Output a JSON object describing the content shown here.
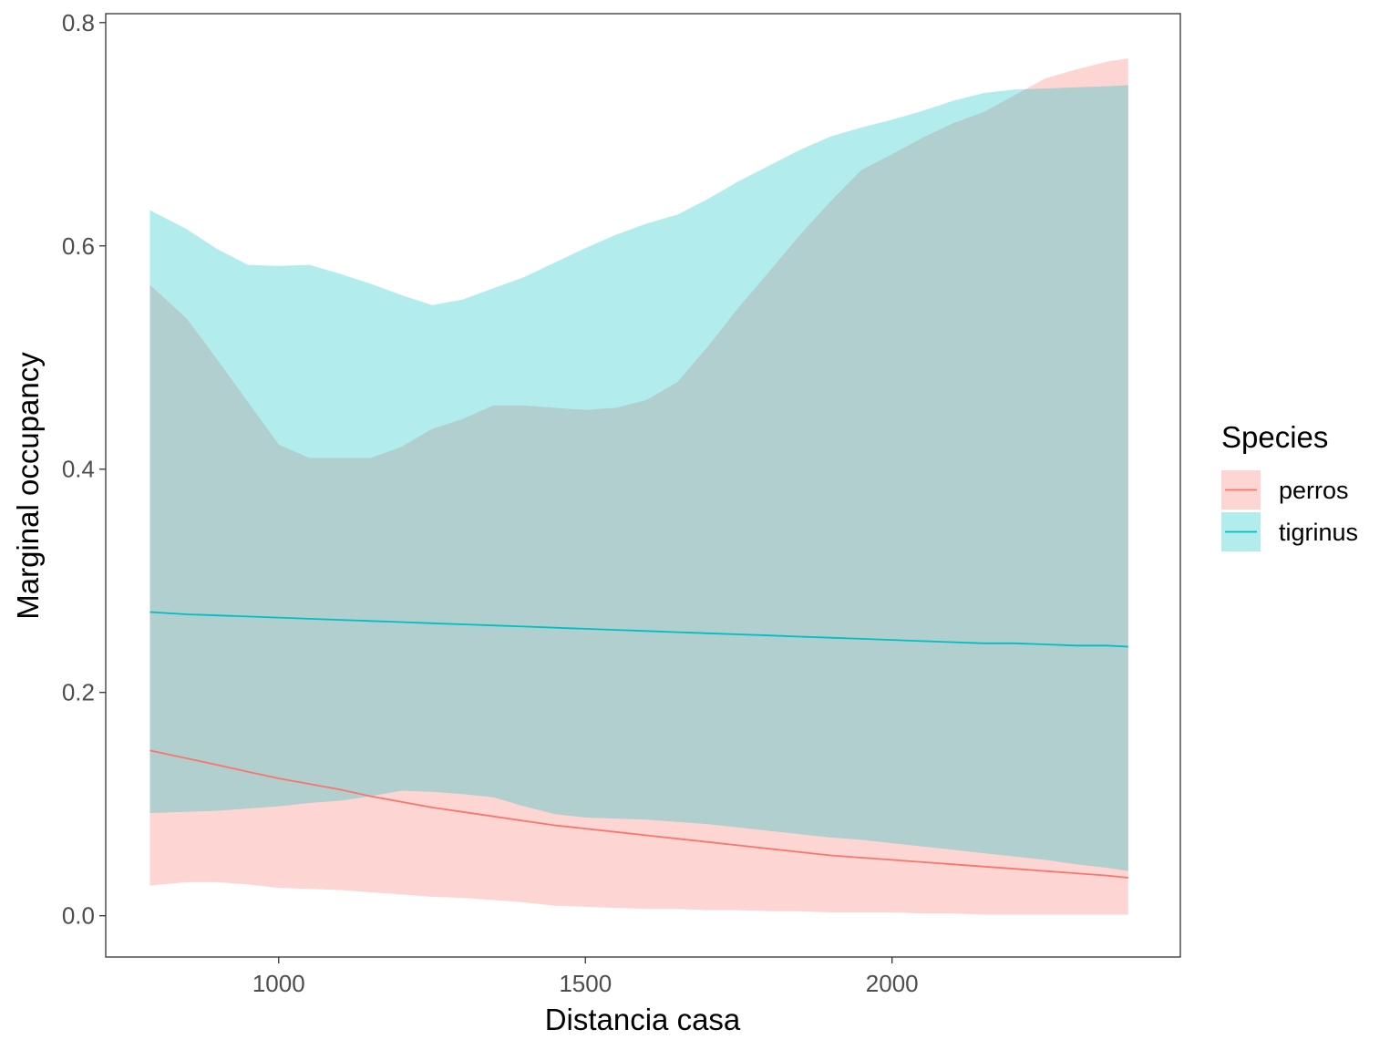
{
  "chart_data": {
    "type": "line",
    "title": "",
    "xlabel": "Distancia casa",
    "ylabel": "Marginal occupancy",
    "xlim": [
      718,
      2470
    ],
    "ylim": [
      -0.037,
      0.808
    ],
    "x_ticks": [
      1000,
      1500,
      2000
    ],
    "x_tick_labels": [
      "1000",
      "1500",
      "2000"
    ],
    "y_ticks": [
      0.0,
      0.2,
      0.4,
      0.6,
      0.8
    ],
    "y_tick_labels": [
      "0.0",
      "0.2",
      "0.4",
      "0.6",
      "0.8"
    ],
    "grid": false,
    "legend": {
      "title": "Species",
      "position": "right"
    },
    "series": [
      {
        "name": "perros",
        "color": "#F8766D",
        "ribbon_color": "#FDD3D1",
        "x": [
          790,
          850,
          900,
          950,
          1000,
          1050,
          1100,
          1150,
          1200,
          1250,
          1300,
          1350,
          1400,
          1450,
          1500,
          1550,
          1600,
          1650,
          1700,
          1750,
          1800,
          1850,
          1900,
          1950,
          2000,
          2050,
          2100,
          2150,
          2200,
          2250,
          2300,
          2350,
          2385
        ],
        "fit": [
          0.148,
          0.141,
          0.135,
          0.129,
          0.123,
          0.118,
          0.113,
          0.107,
          0.102,
          0.097,
          0.093,
          0.089,
          0.085,
          0.081,
          0.078,
          0.075,
          0.072,
          0.069,
          0.066,
          0.063,
          0.06,
          0.057,
          0.054,
          0.052,
          0.05,
          0.048,
          0.046,
          0.044,
          0.042,
          0.04,
          0.038,
          0.036,
          0.034
        ],
        "lower": [
          0.027,
          0.03,
          0.03,
          0.028,
          0.025,
          0.024,
          0.023,
          0.021,
          0.019,
          0.017,
          0.016,
          0.014,
          0.012,
          0.009,
          0.008,
          0.007,
          0.006,
          0.006,
          0.005,
          0.005,
          0.004,
          0.004,
          0.003,
          0.003,
          0.003,
          0.002,
          0.002,
          0.001,
          0.001,
          0.001,
          0.001,
          0.001,
          0.001
        ],
        "upper": [
          0.565,
          0.535,
          0.498,
          0.46,
          0.422,
          0.41,
          0.41,
          0.41,
          0.42,
          0.436,
          0.445,
          0.457,
          0.457,
          0.455,
          0.453,
          0.455,
          0.462,
          0.478,
          0.51,
          0.545,
          0.577,
          0.61,
          0.64,
          0.668,
          0.682,
          0.697,
          0.71,
          0.72,
          0.735,
          0.75,
          0.758,
          0.765,
          0.768
        ]
      },
      {
        "name": "tigrinus",
        "color": "#00BFC4",
        "ribbon_color": "#B1ECEC",
        "x": [
          790,
          850,
          900,
          950,
          1000,
          1050,
          1100,
          1150,
          1200,
          1250,
          1300,
          1350,
          1400,
          1450,
          1500,
          1550,
          1600,
          1650,
          1700,
          1750,
          1800,
          1850,
          1900,
          1950,
          2000,
          2050,
          2100,
          2150,
          2200,
          2250,
          2300,
          2350,
          2385
        ],
        "fit": [
          0.272,
          0.27,
          0.269,
          0.268,
          0.267,
          0.266,
          0.265,
          0.264,
          0.263,
          0.262,
          0.261,
          0.26,
          0.259,
          0.258,
          0.257,
          0.256,
          0.255,
          0.254,
          0.253,
          0.252,
          0.251,
          0.25,
          0.249,
          0.248,
          0.247,
          0.246,
          0.245,
          0.244,
          0.244,
          0.243,
          0.242,
          0.242,
          0.241
        ],
        "lower": [
          0.092,
          0.093,
          0.094,
          0.096,
          0.098,
          0.101,
          0.103,
          0.107,
          0.112,
          0.111,
          0.109,
          0.106,
          0.098,
          0.091,
          0.088,
          0.087,
          0.086,
          0.084,
          0.082,
          0.079,
          0.076,
          0.073,
          0.07,
          0.068,
          0.065,
          0.062,
          0.059,
          0.056,
          0.053,
          0.05,
          0.046,
          0.043,
          0.04
        ],
        "upper": [
          0.632,
          0.615,
          0.597,
          0.583,
          0.582,
          0.583,
          0.575,
          0.566,
          0.556,
          0.547,
          0.552,
          0.562,
          0.572,
          0.585,
          0.598,
          0.61,
          0.62,
          0.628,
          0.642,
          0.658,
          0.672,
          0.686,
          0.698,
          0.706,
          0.713,
          0.721,
          0.73,
          0.737,
          0.74,
          0.741,
          0.742,
          0.743,
          0.744
        ]
      }
    ]
  }
}
